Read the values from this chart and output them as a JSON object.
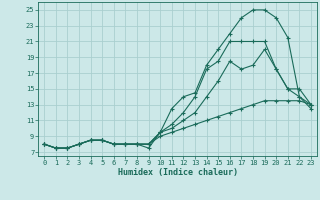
{
  "title": "",
  "xlabel": "Humidex (Indice chaleur)",
  "xlim": [
    -0.5,
    23.5
  ],
  "ylim": [
    6.5,
    26
  ],
  "xticks": [
    0,
    1,
    2,
    3,
    4,
    5,
    6,
    7,
    8,
    9,
    10,
    11,
    12,
    13,
    14,
    15,
    16,
    17,
    18,
    19,
    20,
    21,
    22,
    23
  ],
  "yticks": [
    7,
    9,
    11,
    13,
    15,
    17,
    19,
    21,
    23,
    25
  ],
  "bg_color": "#cce8e8",
  "line_color": "#1a6b5a",
  "grid_color": "#aacfcf",
  "lines": [
    {
      "x": [
        0,
        1,
        2,
        3,
        4,
        5,
        6,
        7,
        8,
        9,
        10,
        11,
        12,
        13,
        14,
        15,
        16,
        17,
        18,
        19,
        20,
        21,
        22,
        23
      ],
      "y": [
        8,
        7.5,
        7.5,
        8,
        8.5,
        8.5,
        8,
        8,
        8,
        7.5,
        9.5,
        12.5,
        14,
        14.5,
        18,
        20,
        22,
        24,
        25,
        25,
        24,
        21.5,
        14,
        13
      ]
    },
    {
      "x": [
        0,
        1,
        2,
        3,
        4,
        5,
        6,
        7,
        8,
        9,
        10,
        11,
        12,
        13,
        14,
        15,
        16,
        17,
        18,
        19,
        20,
        21,
        22,
        23
      ],
      "y": [
        8,
        7.5,
        7.5,
        8,
        8.5,
        8.5,
        8,
        8,
        8,
        8,
        9.5,
        10.5,
        12,
        14,
        17.5,
        18.5,
        21,
        21,
        21,
        21,
        17.5,
        15,
        15,
        13
      ]
    },
    {
      "x": [
        0,
        1,
        2,
        3,
        4,
        5,
        6,
        7,
        8,
        9,
        10,
        11,
        12,
        13,
        14,
        15,
        16,
        17,
        18,
        19,
        20,
        21,
        22,
        23
      ],
      "y": [
        8,
        7.5,
        7.5,
        8,
        8.5,
        8.5,
        8,
        8,
        8,
        8,
        9.5,
        10,
        11,
        12,
        14,
        16,
        18.5,
        17.5,
        18,
        20,
        17.5,
        15,
        14,
        12.5
      ]
    },
    {
      "x": [
        0,
        1,
        2,
        3,
        4,
        5,
        6,
        7,
        8,
        9,
        10,
        11,
        12,
        13,
        14,
        15,
        16,
        17,
        18,
        19,
        20,
        21,
        22,
        23
      ],
      "y": [
        8,
        7.5,
        7.5,
        8,
        8.5,
        8.5,
        8,
        8,
        8,
        8,
        9,
        9.5,
        10,
        10.5,
        11,
        11.5,
        12,
        12.5,
        13,
        13.5,
        13.5,
        13.5,
        13.5,
        13
      ]
    }
  ]
}
